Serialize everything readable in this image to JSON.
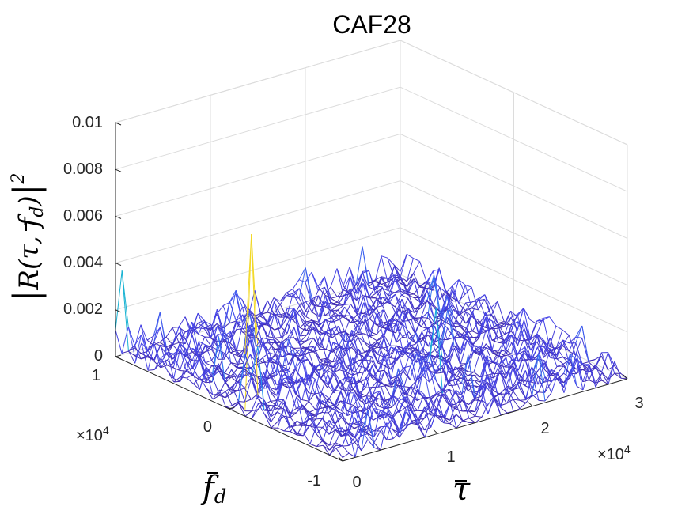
{
  "chart_data": {
    "type": "surface-3d",
    "title": "CAF28",
    "zlabel": "|R(τ̄, f̄_d)|²",
    "xlabel": "τ̄",
    "ylabel": "f̄_d",
    "x_multiplier": "×10^4",
    "y_multiplier": "×10^4",
    "xlim": [
      0,
      3
    ],
    "ylim": [
      -1,
      1
    ],
    "zlim": [
      0,
      0.01
    ],
    "x_ticks": [
      "0",
      "1",
      "2",
      "3"
    ],
    "y_ticks": [
      "-1",
      "0",
      "1"
    ],
    "z_ticks": [
      "0",
      "0.002",
      "0.004",
      "0.006",
      "0.008",
      "0.01"
    ],
    "grid": true,
    "colormap": "parula",
    "noise_level": 0.0012,
    "peaks": [
      {
        "x": 0.1,
        "y": -0.1,
        "z": 0.0075
      },
      {
        "x": 0.0,
        "y": 0.95,
        "z": 0.0038
      },
      {
        "x": 1.6,
        "y": -0.5,
        "z": 0.0035
      }
    ]
  }
}
